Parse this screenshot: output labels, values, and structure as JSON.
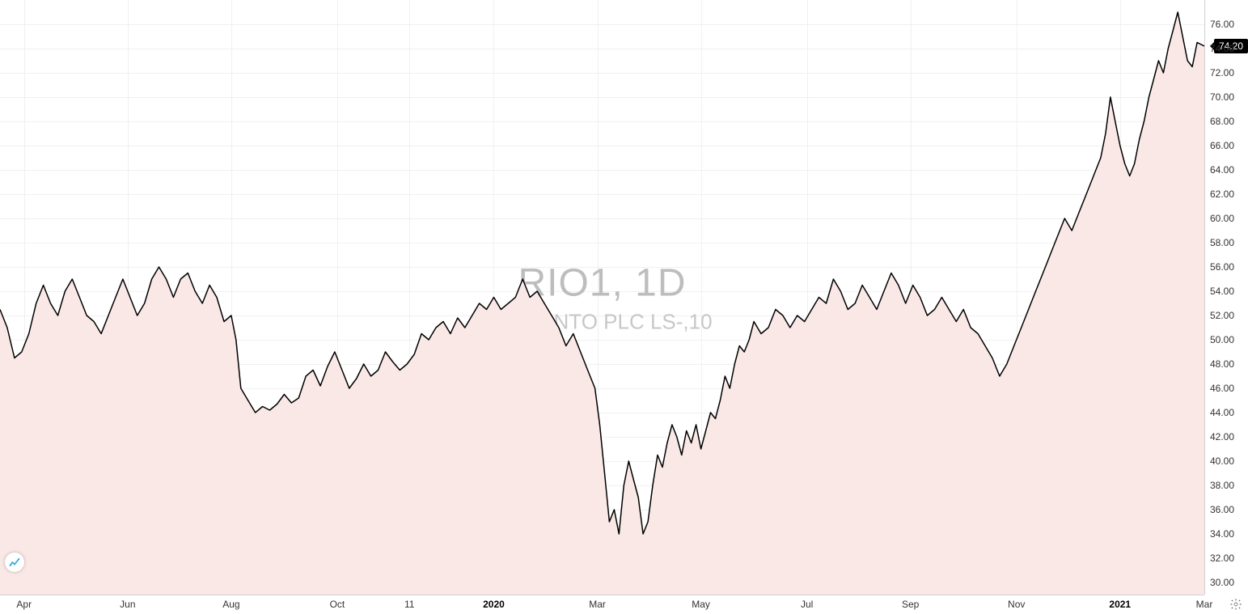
{
  "chart": {
    "type": "area-line",
    "symbol": "RIO1, 1D",
    "name": "RIO TINTO PLC LS-,10",
    "current_price": "74.20",
    "current_price_value": 74.2,
    "background_color": "#ffffff",
    "grid_color": "#f0f0f0",
    "axis_line_color": "#d0d0d0",
    "line_color": "#000000",
    "line_width": 1.5,
    "fill_color": "#f9e8e6",
    "fill_opacity": 1.0,
    "watermark_color_symbol": "#bdbdbd",
    "watermark_color_name": "#c7c7c7",
    "watermark_symbol_fontsize": 48,
    "watermark_name_fontsize": 26,
    "price_label_bg": "#000000",
    "price_label_fg": "#ffffff",
    "tick_fontsize": 12,
    "tick_color": "#333333",
    "y_axis": {
      "min": 29,
      "max": 78,
      "ticks": [
        30,
        32,
        34,
        36,
        38,
        40,
        42,
        44,
        46,
        48,
        50,
        52,
        54,
        56,
        58,
        60,
        62,
        64,
        66,
        68,
        70,
        72,
        74,
        76
      ],
      "tick_labels": [
        "30.00",
        "32.00",
        "34.00",
        "36.00",
        "38.00",
        "40.00",
        "42.00",
        "44.00",
        "46.00",
        "48.00",
        "50.00",
        "52.00",
        "54.00",
        "56.00",
        "58.00",
        "60.00",
        "62.00",
        "64.00",
        "66.00",
        "68.00",
        "70.00",
        "72.00",
        "74.00",
        "76.00"
      ]
    },
    "x_axis": {
      "min": 0,
      "max": 500,
      "ticks": [
        {
          "pos": 10,
          "label": "Apr",
          "bold": false
        },
        {
          "pos": 53,
          "label": "Jun",
          "bold": false
        },
        {
          "pos": 96,
          "label": "Aug",
          "bold": false
        },
        {
          "pos": 140,
          "label": "Oct",
          "bold": false
        },
        {
          "pos": 170,
          "label": "11",
          "bold": false
        },
        {
          "pos": 205,
          "label": "2020",
          "bold": true
        },
        {
          "pos": 248,
          "label": "Mar",
          "bold": false
        },
        {
          "pos": 291,
          "label": "May",
          "bold": false
        },
        {
          "pos": 335,
          "label": "Jul",
          "bold": false
        },
        {
          "pos": 378,
          "label": "Sep",
          "bold": false
        },
        {
          "pos": 422,
          "label": "Nov",
          "bold": false
        },
        {
          "pos": 465,
          "label": "2021",
          "bold": true
        },
        {
          "pos": 500,
          "label": "Mar",
          "bold": false
        }
      ]
    },
    "series": [
      {
        "x": 0,
        "y": 52.5
      },
      {
        "x": 3,
        "y": 51
      },
      {
        "x": 6,
        "y": 48.5
      },
      {
        "x": 9,
        "y": 49
      },
      {
        "x": 12,
        "y": 50.5
      },
      {
        "x": 15,
        "y": 53
      },
      {
        "x": 18,
        "y": 54.5
      },
      {
        "x": 21,
        "y": 53
      },
      {
        "x": 24,
        "y": 52
      },
      {
        "x": 27,
        "y": 54
      },
      {
        "x": 30,
        "y": 55
      },
      {
        "x": 33,
        "y": 53.5
      },
      {
        "x": 36,
        "y": 52
      },
      {
        "x": 39,
        "y": 51.5
      },
      {
        "x": 42,
        "y": 50.5
      },
      {
        "x": 45,
        "y": 52
      },
      {
        "x": 48,
        "y": 53.5
      },
      {
        "x": 51,
        "y": 55
      },
      {
        "x": 54,
        "y": 53.5
      },
      {
        "x": 57,
        "y": 52
      },
      {
        "x": 60,
        "y": 53
      },
      {
        "x": 63,
        "y": 55
      },
      {
        "x": 66,
        "y": 56
      },
      {
        "x": 69,
        "y": 55
      },
      {
        "x": 72,
        "y": 53.5
      },
      {
        "x": 75,
        "y": 55
      },
      {
        "x": 78,
        "y": 55.5
      },
      {
        "x": 81,
        "y": 54
      },
      {
        "x": 84,
        "y": 53
      },
      {
        "x": 87,
        "y": 54.5
      },
      {
        "x": 90,
        "y": 53.5
      },
      {
        "x": 93,
        "y": 51.5
      },
      {
        "x": 96,
        "y": 52
      },
      {
        "x": 98,
        "y": 50
      },
      {
        "x": 100,
        "y": 46
      },
      {
        "x": 103,
        "y": 45
      },
      {
        "x": 106,
        "y": 44
      },
      {
        "x": 109,
        "y": 44.5
      },
      {
        "x": 112,
        "y": 44.2
      },
      {
        "x": 115,
        "y": 44.7
      },
      {
        "x": 118,
        "y": 45.5
      },
      {
        "x": 121,
        "y": 44.8
      },
      {
        "x": 124,
        "y": 45.2
      },
      {
        "x": 127,
        "y": 47
      },
      {
        "x": 130,
        "y": 47.5
      },
      {
        "x": 133,
        "y": 46.2
      },
      {
        "x": 136,
        "y": 47.8
      },
      {
        "x": 139,
        "y": 49
      },
      {
        "x": 142,
        "y": 47.5
      },
      {
        "x": 145,
        "y": 46
      },
      {
        "x": 148,
        "y": 46.8
      },
      {
        "x": 151,
        "y": 48
      },
      {
        "x": 154,
        "y": 47
      },
      {
        "x": 157,
        "y": 47.5
      },
      {
        "x": 160,
        "y": 49
      },
      {
        "x": 163,
        "y": 48.2
      },
      {
        "x": 166,
        "y": 47.5
      },
      {
        "x": 169,
        "y": 48
      },
      {
        "x": 172,
        "y": 48.8
      },
      {
        "x": 175,
        "y": 50.5
      },
      {
        "x": 178,
        "y": 50
      },
      {
        "x": 181,
        "y": 51
      },
      {
        "x": 184,
        "y": 51.5
      },
      {
        "x": 187,
        "y": 50.5
      },
      {
        "x": 190,
        "y": 51.8
      },
      {
        "x": 193,
        "y": 51
      },
      {
        "x": 196,
        "y": 52
      },
      {
        "x": 199,
        "y": 53
      },
      {
        "x": 202,
        "y": 52.5
      },
      {
        "x": 205,
        "y": 53.5
      },
      {
        "x": 208,
        "y": 52.5
      },
      {
        "x": 211,
        "y": 53
      },
      {
        "x": 214,
        "y": 53.5
      },
      {
        "x": 217,
        "y": 55
      },
      {
        "x": 220,
        "y": 53.5
      },
      {
        "x": 223,
        "y": 54
      },
      {
        "x": 226,
        "y": 53
      },
      {
        "x": 229,
        "y": 52
      },
      {
        "x": 232,
        "y": 51
      },
      {
        "x": 235,
        "y": 49.5
      },
      {
        "x": 238,
        "y": 50.5
      },
      {
        "x": 241,
        "y": 49
      },
      {
        "x": 244,
        "y": 47.5
      },
      {
        "x": 247,
        "y": 46
      },
      {
        "x": 249,
        "y": 43
      },
      {
        "x": 251,
        "y": 39
      },
      {
        "x": 253,
        "y": 35
      },
      {
        "x": 255,
        "y": 36
      },
      {
        "x": 257,
        "y": 34
      },
      {
        "x": 259,
        "y": 38
      },
      {
        "x": 261,
        "y": 40
      },
      {
        "x": 263,
        "y": 38.5
      },
      {
        "x": 265,
        "y": 37
      },
      {
        "x": 267,
        "y": 34
      },
      {
        "x": 269,
        "y": 35
      },
      {
        "x": 271,
        "y": 38
      },
      {
        "x": 273,
        "y": 40.5
      },
      {
        "x": 275,
        "y": 39.5
      },
      {
        "x": 277,
        "y": 41.5
      },
      {
        "x": 279,
        "y": 43
      },
      {
        "x": 281,
        "y": 42
      },
      {
        "x": 283,
        "y": 40.5
      },
      {
        "x": 285,
        "y": 42.5
      },
      {
        "x": 287,
        "y": 41.5
      },
      {
        "x": 289,
        "y": 43
      },
      {
        "x": 291,
        "y": 41
      },
      {
        "x": 293,
        "y": 42.5
      },
      {
        "x": 295,
        "y": 44
      },
      {
        "x": 297,
        "y": 43.5
      },
      {
        "x": 299,
        "y": 45
      },
      {
        "x": 301,
        "y": 47
      },
      {
        "x": 303,
        "y": 46
      },
      {
        "x": 305,
        "y": 48
      },
      {
        "x": 307,
        "y": 49.5
      },
      {
        "x": 309,
        "y": 49
      },
      {
        "x": 311,
        "y": 50
      },
      {
        "x": 313,
        "y": 51.5
      },
      {
        "x": 316,
        "y": 50.5
      },
      {
        "x": 319,
        "y": 51
      },
      {
        "x": 322,
        "y": 52.5
      },
      {
        "x": 325,
        "y": 52
      },
      {
        "x": 328,
        "y": 51
      },
      {
        "x": 331,
        "y": 52
      },
      {
        "x": 334,
        "y": 51.5
      },
      {
        "x": 337,
        "y": 52.5
      },
      {
        "x": 340,
        "y": 53.5
      },
      {
        "x": 343,
        "y": 53
      },
      {
        "x": 346,
        "y": 55
      },
      {
        "x": 349,
        "y": 54
      },
      {
        "x": 352,
        "y": 52.5
      },
      {
        "x": 355,
        "y": 53
      },
      {
        "x": 358,
        "y": 54.5
      },
      {
        "x": 361,
        "y": 53.5
      },
      {
        "x": 364,
        "y": 52.5
      },
      {
        "x": 367,
        "y": 54
      },
      {
        "x": 370,
        "y": 55.5
      },
      {
        "x": 373,
        "y": 54.5
      },
      {
        "x": 376,
        "y": 53
      },
      {
        "x": 379,
        "y": 54.5
      },
      {
        "x": 382,
        "y": 53.5
      },
      {
        "x": 385,
        "y": 52
      },
      {
        "x": 388,
        "y": 52.5
      },
      {
        "x": 391,
        "y": 53.5
      },
      {
        "x": 394,
        "y": 52.5
      },
      {
        "x": 397,
        "y": 51.5
      },
      {
        "x": 400,
        "y": 52.5
      },
      {
        "x": 403,
        "y": 51
      },
      {
        "x": 406,
        "y": 50.5
      },
      {
        "x": 409,
        "y": 49.5
      },
      {
        "x": 412,
        "y": 48.5
      },
      {
        "x": 415,
        "y": 47
      },
      {
        "x": 418,
        "y": 48
      },
      {
        "x": 421,
        "y": 49.5
      },
      {
        "x": 424,
        "y": 51
      },
      {
        "x": 427,
        "y": 52.5
      },
      {
        "x": 430,
        "y": 54
      },
      {
        "x": 433,
        "y": 55.5
      },
      {
        "x": 436,
        "y": 57
      },
      {
        "x": 439,
        "y": 58.5
      },
      {
        "x": 442,
        "y": 60
      },
      {
        "x": 445,
        "y": 59
      },
      {
        "x": 448,
        "y": 60.5
      },
      {
        "x": 451,
        "y": 62
      },
      {
        "x": 454,
        "y": 63.5
      },
      {
        "x": 457,
        "y": 65
      },
      {
        "x": 459,
        "y": 67
      },
      {
        "x": 461,
        "y": 70
      },
      {
        "x": 463,
        "y": 68
      },
      {
        "x": 465,
        "y": 66
      },
      {
        "x": 467,
        "y": 64.5
      },
      {
        "x": 469,
        "y": 63.5
      },
      {
        "x": 471,
        "y": 64.5
      },
      {
        "x": 473,
        "y": 66.5
      },
      {
        "x": 475,
        "y": 68
      },
      {
        "x": 477,
        "y": 70
      },
      {
        "x": 479,
        "y": 71.5
      },
      {
        "x": 481,
        "y": 73
      },
      {
        "x": 483,
        "y": 72
      },
      {
        "x": 485,
        "y": 74
      },
      {
        "x": 487,
        "y": 75.5
      },
      {
        "x": 489,
        "y": 77
      },
      {
        "x": 491,
        "y": 75
      },
      {
        "x": 493,
        "y": 73
      },
      {
        "x": 495,
        "y": 72.5
      },
      {
        "x": 497,
        "y": 74.5
      },
      {
        "x": 500,
        "y": 74.2
      }
    ]
  }
}
